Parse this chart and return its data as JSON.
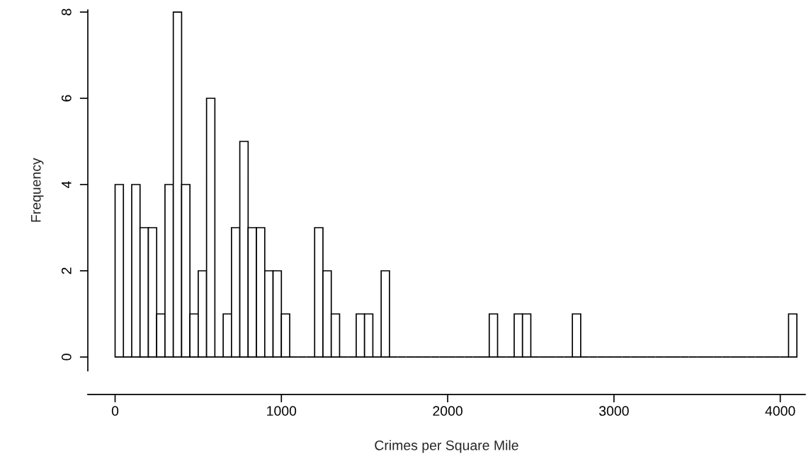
{
  "chart_data": {
    "type": "histogram",
    "xlabel": "Crimes per Square Mile",
    "ylabel": "Frequency",
    "bins": [
      0,
      50,
      100,
      150,
      200,
      250,
      300,
      350,
      400,
      450,
      500,
      550,
      600,
      650,
      700,
      750,
      800,
      850,
      900,
      950,
      1000,
      1050,
      1100,
      1150,
      1200,
      1250,
      1300,
      1350,
      1400,
      1450,
      1500,
      1550,
      1600,
      1650,
      1700,
      1750,
      1800,
      1850,
      1900,
      1950,
      2000,
      2050,
      2100,
      2150,
      2200,
      2250,
      2300,
      2350,
      2400,
      2450,
      2500,
      2550,
      2600,
      2650,
      2700,
      2750,
      2800,
      2850,
      2900,
      2950,
      3000,
      3050,
      3100,
      3150,
      3200,
      3250,
      3300,
      3350,
      3400,
      3450,
      3500,
      3550,
      3600,
      3650,
      3700,
      3750,
      3800,
      3850,
      3900,
      3950,
      4000,
      4050,
      4100
    ],
    "values": [
      4,
      0,
      4,
      3,
      3,
      1,
      4,
      8,
      4,
      1,
      2,
      6,
      0,
      1,
      3,
      5,
      3,
      3,
      2,
      2,
      1,
      0,
      0,
      0,
      3,
      2,
      1,
      0,
      0,
      1,
      1,
      0,
      2,
      0,
      0,
      0,
      0,
      0,
      0,
      0,
      0,
      0,
      0,
      0,
      0,
      1,
      0,
      0,
      1,
      1,
      0,
      0,
      0,
      0,
      0,
      1,
      0,
      0,
      0,
      0,
      0,
      0,
      0,
      0,
      0,
      0,
      0,
      0,
      0,
      0,
      0,
      0,
      0,
      0,
      0,
      0,
      0,
      0,
      0,
      0,
      0,
      1
    ],
    "xlim": [
      -164,
      4150
    ],
    "ylim": [
      -0.32,
      8.05
    ],
    "xticks": [
      0,
      1000,
      2000,
      3000,
      4000
    ],
    "yticks": [
      0,
      2,
      4,
      6,
      8
    ],
    "grid": false
  }
}
